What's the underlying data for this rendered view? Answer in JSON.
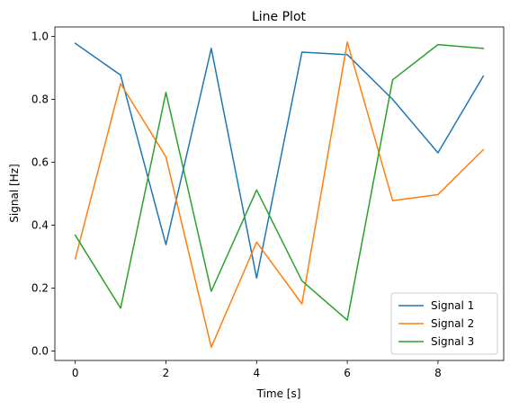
{
  "chart_data": {
    "type": "line",
    "title": "Line Plot",
    "xlabel": "Time [s]",
    "ylabel": "Signal [Hz]",
    "x": [
      0,
      1,
      2,
      3,
      4,
      5,
      6,
      7,
      8,
      9
    ],
    "xlim": [
      -0.45,
      9.45
    ],
    "ylim": [
      -0.03,
      1.03
    ],
    "xticks": [
      0,
      2,
      4,
      6,
      8
    ],
    "xtick_labels": [
      "0",
      "2",
      "4",
      "6",
      "8"
    ],
    "yticks": [
      0.0,
      0.2,
      0.4,
      0.6,
      0.8,
      1.0
    ],
    "ytick_labels": [
      "0.0",
      "0.2",
      "0.4",
      "0.6",
      "0.8",
      "1.0"
    ],
    "grid": false,
    "legend_position": "lower-right",
    "series": [
      {
        "name": "Signal 1",
        "color": "#1f77b4",
        "values": [
          0.978,
          0.877,
          0.338,
          0.962,
          0.232,
          0.95,
          0.942,
          0.8,
          0.63,
          0.874
        ]
      },
      {
        "name": "Signal 2",
        "color": "#ff7f0e",
        "values": [
          0.293,
          0.85,
          0.617,
          0.012,
          0.346,
          0.15,
          0.982,
          0.478,
          0.497,
          0.64
        ]
      },
      {
        "name": "Signal 3",
        "color": "#2ca02c",
        "values": [
          0.368,
          0.136,
          0.822,
          0.19,
          0.512,
          0.223,
          0.098,
          0.862,
          0.974,
          0.962
        ]
      }
    ]
  }
}
